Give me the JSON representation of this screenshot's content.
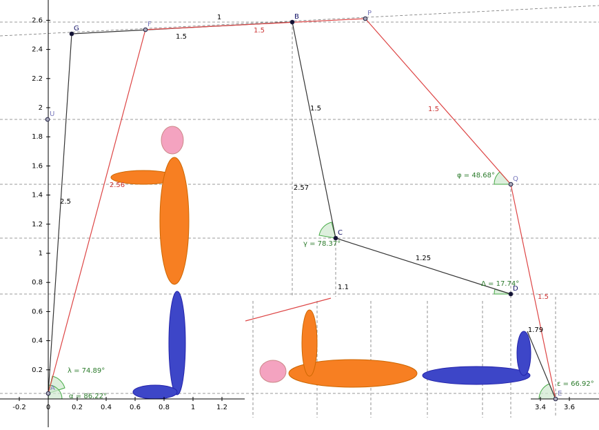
{
  "axes": {
    "xticks": [
      -0.2,
      0,
      0.2,
      0.4,
      0.6,
      0.8,
      1,
      1.2,
      3.4,
      3.6
    ],
    "yticks": [
      0.2,
      0.4,
      0.6,
      0.8,
      1,
      1.2,
      1.4,
      1.6,
      1.8,
      2,
      2.2,
      2.4,
      2.6
    ]
  },
  "points": [
    {
      "label": "A"
    },
    {
      "label": "G"
    },
    {
      "label": "F"
    },
    {
      "label": "B"
    },
    {
      "label": "P"
    },
    {
      "label": "U"
    },
    {
      "label": "C"
    },
    {
      "label": "Q"
    },
    {
      "label": "D"
    },
    {
      "label": "E"
    }
  ],
  "segment_labels": [
    "1",
    "1.5",
    "1.5",
    "1.5",
    "1.25",
    "1.5",
    "1.5",
    "2.56",
    "2.5",
    "2.57",
    "1.1",
    "1.79"
  ],
  "angles": [
    "λ = 74.89°",
    "α = 86.22°",
    "γ = 78.37°",
    "φ = 48.68°",
    "Δ = 17.74°",
    "ε = 66.92°"
  ]
}
